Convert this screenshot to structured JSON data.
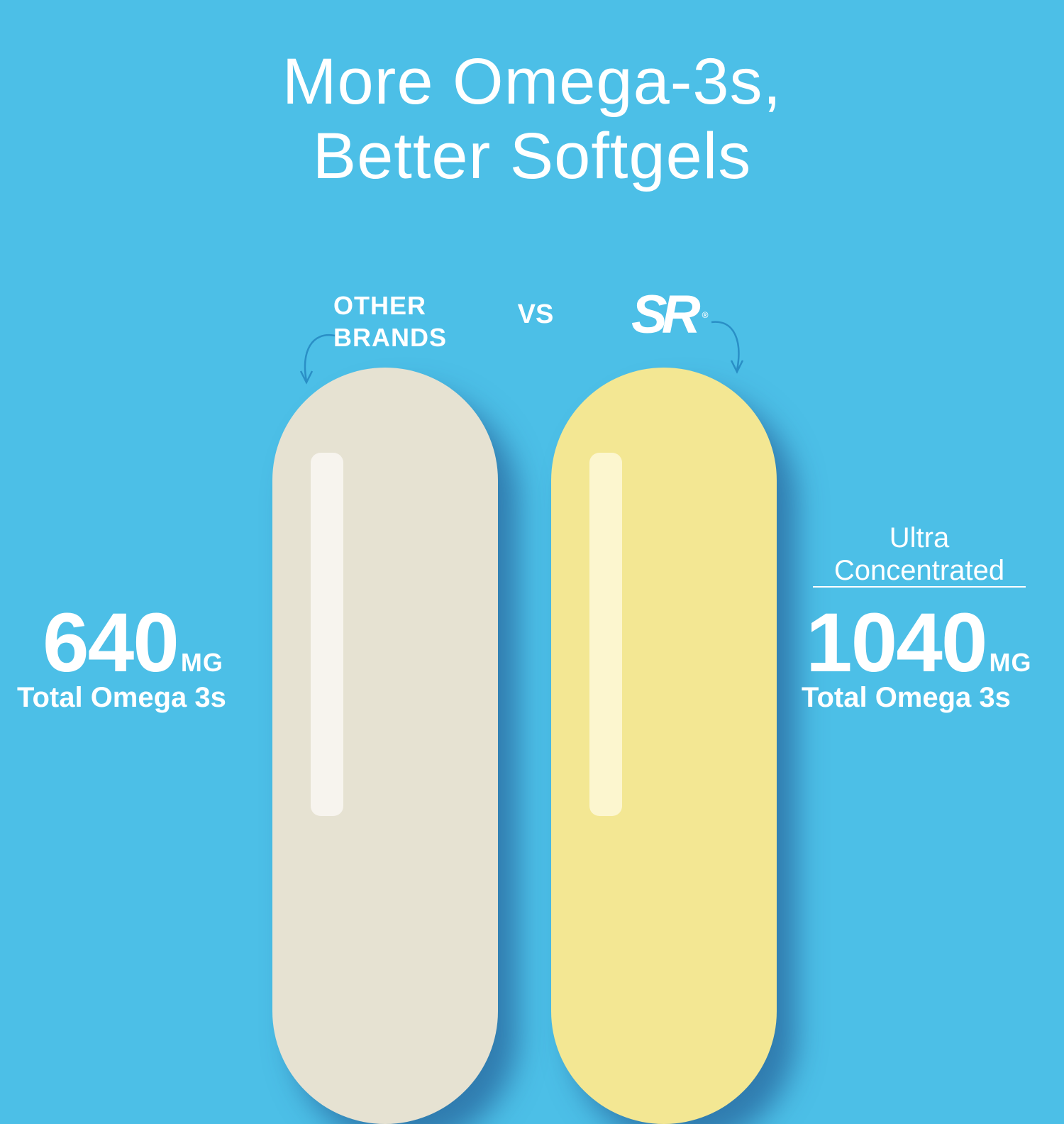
{
  "headline": {
    "line1": "More Omega-3s,",
    "line2": "Better Softgels"
  },
  "comparison": {
    "left_label_line1": "OTHER",
    "left_label_line2": "BRANDS",
    "vs_label": "VS",
    "right_logo_text": "SR",
    "right_logo_mark": "®"
  },
  "other_brands": {
    "amount": "640",
    "unit": "MG",
    "caption": "Total Omega 3s",
    "pill_color": "#e6e2d2"
  },
  "sr": {
    "tagline_line1": "Ultra",
    "tagline_line2": "Concentrated",
    "amount": "1040",
    "unit": "MG",
    "caption": "Total Omega 3s",
    "pill_color": "#f3e793"
  },
  "colors": {
    "background": "#4cbfe7",
    "text": "#ffffff",
    "arrow": "#2a8fc6"
  }
}
